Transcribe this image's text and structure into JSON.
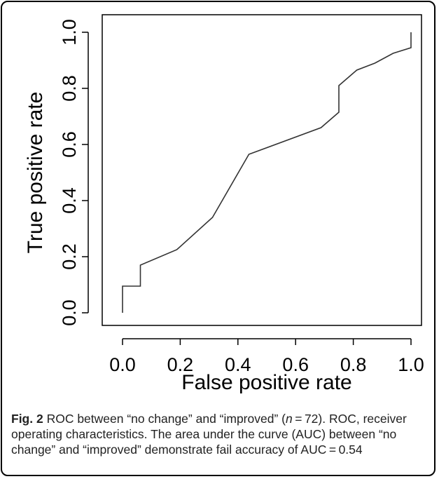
{
  "chart_data": {
    "type": "line",
    "title": "",
    "xlabel": "False positive rate",
    "ylabel": "True positive rate",
    "xlim": [
      0.0,
      1.0
    ],
    "ylim": [
      0.0,
      1.0
    ],
    "x_ticks": [
      "0.0",
      "0.2",
      "0.4",
      "0.6",
      "0.8",
      "1.0"
    ],
    "y_ticks": [
      "0.0",
      "0.2",
      "0.4",
      "0.6",
      "0.8",
      "1.0"
    ],
    "grid": false,
    "series": [
      {
        "x": [
          0.0,
          0.0,
          0.062,
          0.062,
          0.188,
          0.312,
          0.438,
          0.688,
          0.75,
          0.75,
          0.812,
          0.875,
          0.938,
          1.0,
          1.0
        ],
        "y": [
          0.0,
          0.095,
          0.095,
          0.17,
          0.225,
          0.34,
          0.565,
          0.66,
          0.715,
          0.81,
          0.865,
          0.89,
          0.925,
          0.945,
          1.0
        ],
        "color": "#333333"
      }
    ]
  },
  "caption": {
    "figure_label": "Fig. 2",
    "text_part1": " ROC between “no change” and “improved” (",
    "n_symbol": "n",
    "text_part2": " = 72). ROC, receiver operating characteristics. The area under the curve (AUC) between “no change” and “improved” demonstrate fail accuracy of AUC = 0.54"
  }
}
